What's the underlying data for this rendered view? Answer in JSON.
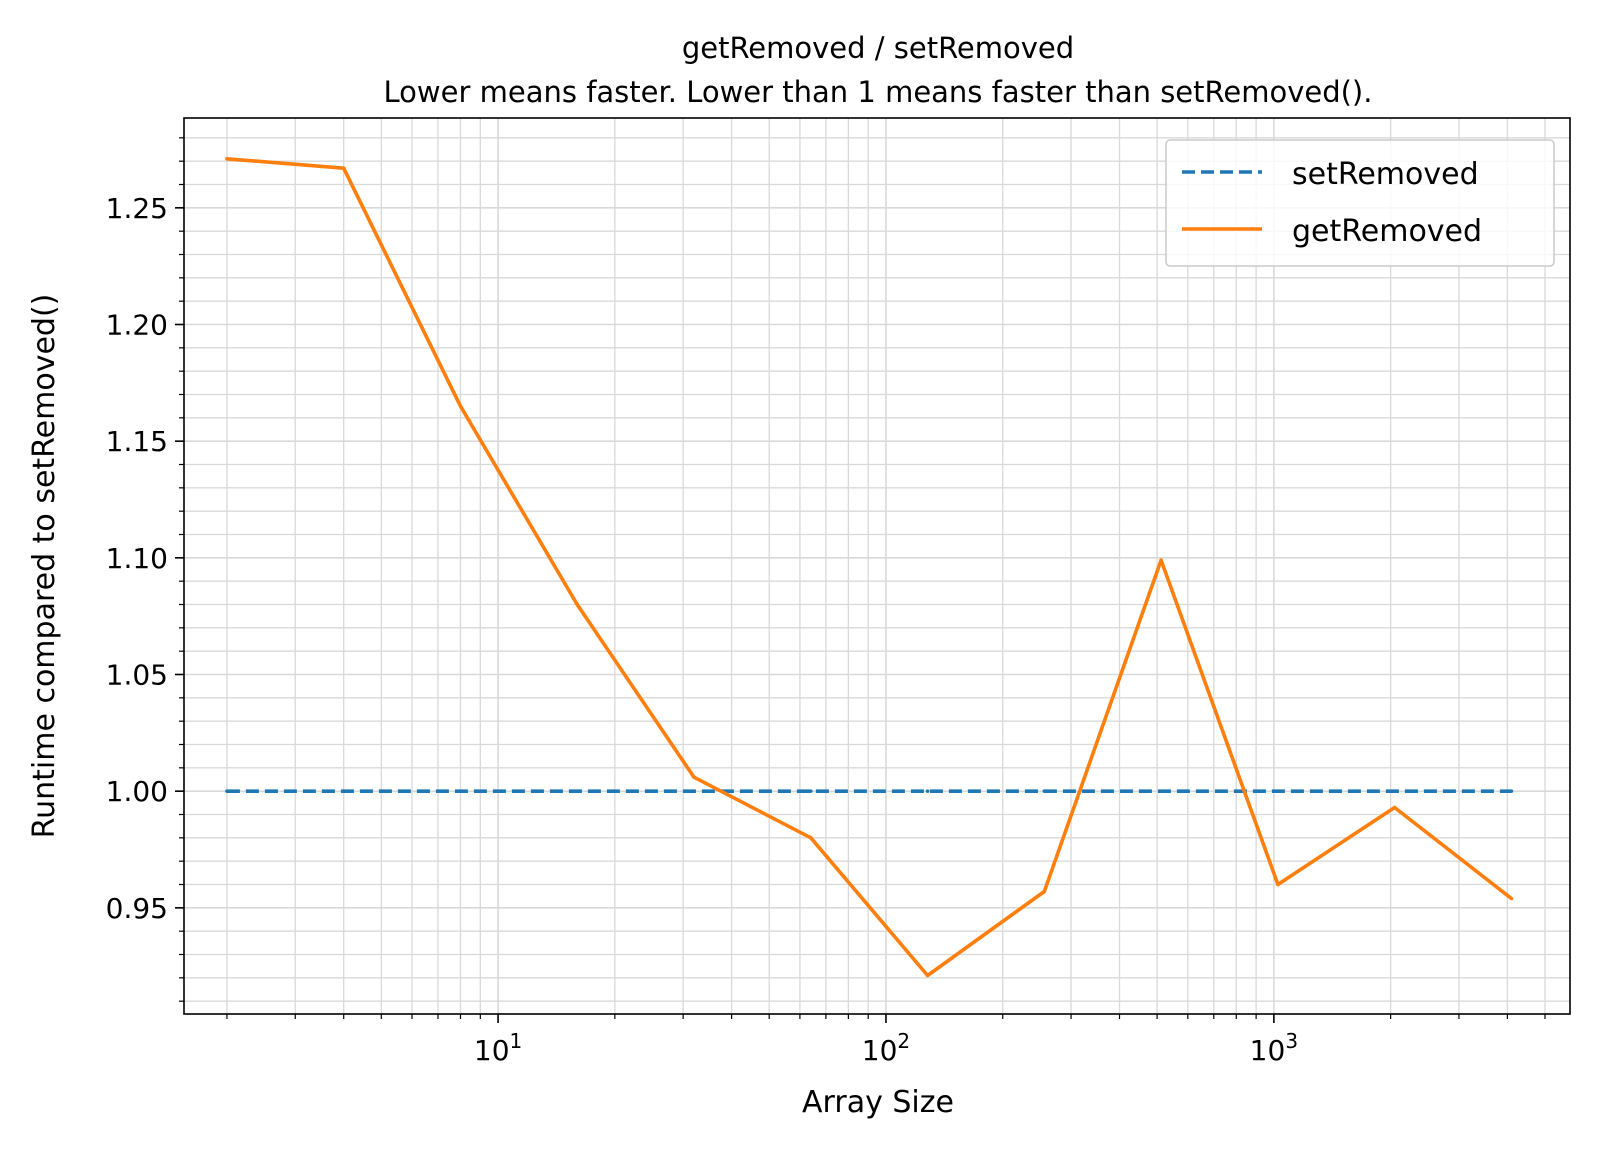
{
  "chart_data": {
    "type": "line",
    "title": "getRemoved / setRemoved",
    "subtitle": "Lower means faster. Lower than 1 means faster than setRemoved().",
    "xlabel": "Array Size",
    "ylabel": "Runtime compared to setRemoved()",
    "x_scale": "log",
    "xlim": [
      1.55,
      5800
    ],
    "ylim": [
      0.9045,
      1.2885
    ],
    "x_ticks": [
      {
        "value": 10,
        "base": "10",
        "exp": "1"
      },
      {
        "value": 100,
        "base": "10",
        "exp": "2"
      },
      {
        "value": 1000,
        "base": "10",
        "exp": "3"
      }
    ],
    "y_ticks": [
      0.95,
      1.0,
      1.05,
      1.1,
      1.15,
      1.2,
      1.25
    ],
    "y_tick_labels": [
      "0.95",
      "1.00",
      "1.05",
      "1.10",
      "1.15",
      "1.20",
      "1.25"
    ],
    "y_minor_step": 0.01,
    "grid": "both major and minor",
    "legend_position": "upper right",
    "x": [
      2,
      4,
      8,
      16,
      32,
      64,
      128,
      256,
      512,
      1024,
      2048,
      4096
    ],
    "series": [
      {
        "name": "setRemoved",
        "style": "dashed",
        "color": "#1f77b4",
        "values": [
          1,
          1,
          1,
          1,
          1,
          1,
          1,
          1,
          1,
          1,
          1,
          1
        ]
      },
      {
        "name": "getRemoved",
        "style": "solid",
        "color": "#ff7f0e",
        "values": [
          1.271,
          1.267,
          1.165,
          1.08,
          1.006,
          0.98,
          0.921,
          0.957,
          1.099,
          0.96,
          0.993,
          0.954
        ]
      }
    ]
  }
}
